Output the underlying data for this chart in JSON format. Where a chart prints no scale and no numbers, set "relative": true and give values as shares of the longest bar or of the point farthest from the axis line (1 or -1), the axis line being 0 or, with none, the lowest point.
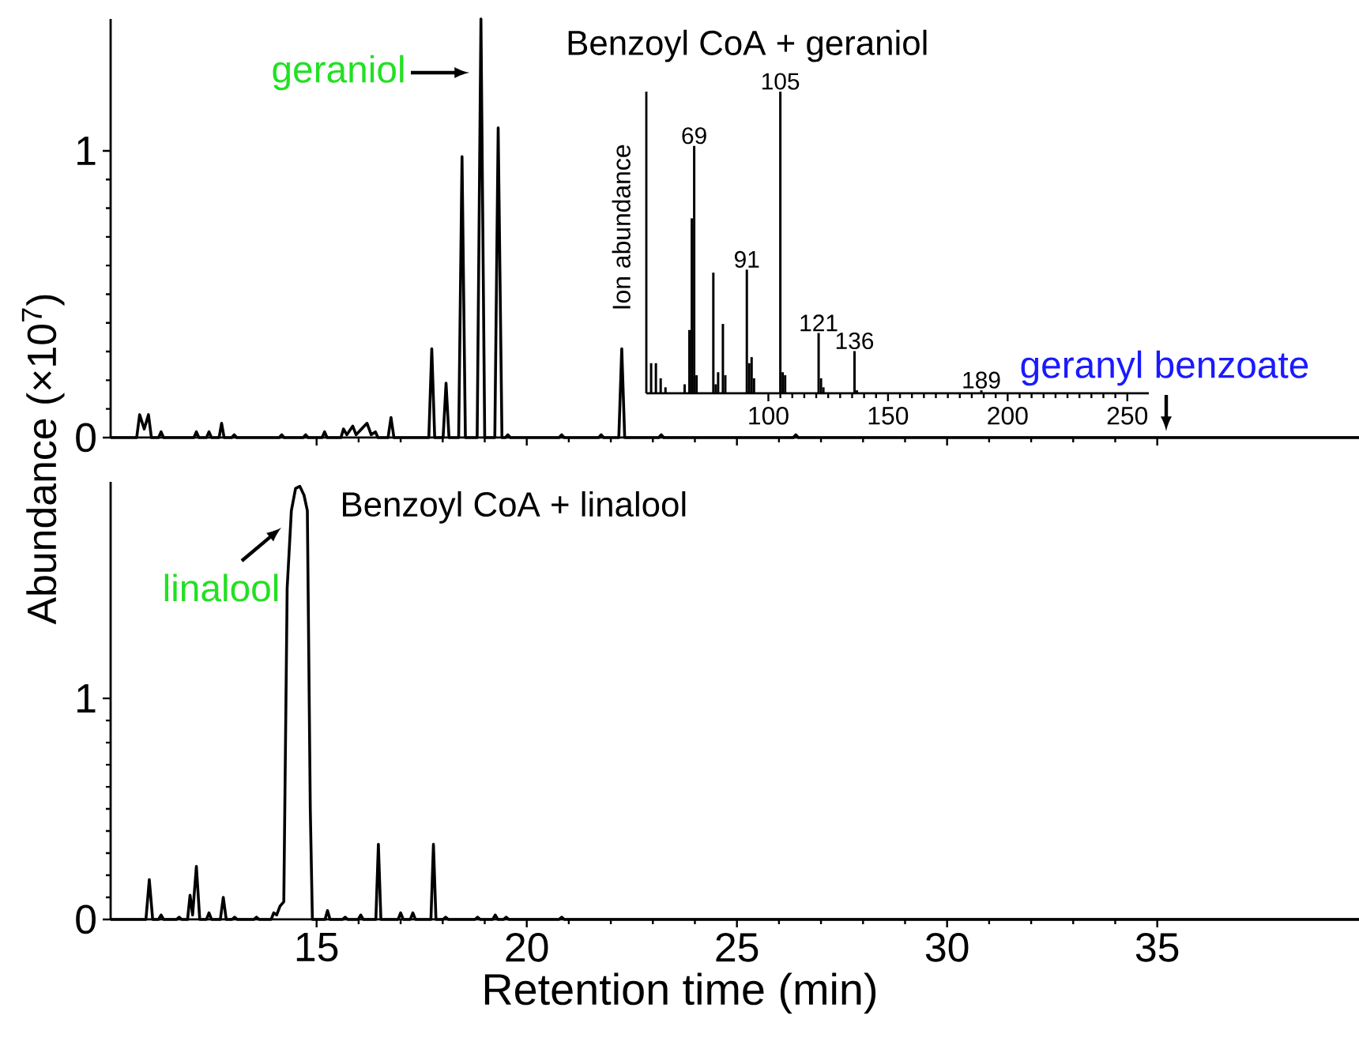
{
  "chart_data": [
    {
      "type": "line",
      "title": "Benzoyl CoA + geraniol",
      "ylabel": "Abundance (×10$^{7}$)",
      "xlim": [
        10.1,
        39.8
      ],
      "ylim": [
        0,
        1.46
      ],
      "xticks": [
        {
          "value": 15,
          "label": null
        },
        {
          "value": 20,
          "label": null
        },
        {
          "value": 25,
          "label": null
        },
        {
          "value": 30,
          "label": null
        },
        {
          "value": 35,
          "label": null
        }
      ],
      "yticks": [
        0,
        1
      ],
      "tick_labels": "y",
      "series": [
        {
          "color": "#000000",
          "x": [
            10.1,
            10.72,
            10.79,
            10.9,
            11.0,
            11.07,
            11.24,
            11.3,
            11.36,
            12.08,
            12.14,
            12.2,
            12.38,
            12.44,
            12.5,
            12.68,
            12.74,
            12.8,
            12.98,
            13.04,
            13.1,
            14.11,
            14.17,
            14.23,
            14.68,
            14.74,
            14.8,
            15.13,
            15.19,
            15.25,
            15.58,
            15.64,
            15.72,
            15.86,
            15.94,
            16.2,
            16.3,
            16.4,
            16.46,
            16.7,
            16.77,
            16.84,
            17.67,
            17.74,
            17.81,
            18.01,
            18.08,
            18.15,
            18.38,
            18.46,
            18.54,
            18.82,
            18.91,
            19.0,
            19.24,
            19.32,
            19.41,
            19.49,
            19.55,
            19.61,
            20.77,
            20.83,
            20.89,
            21.71,
            21.77,
            21.83,
            22.19,
            22.26,
            22.33,
            23.14,
            23.2,
            23.26,
            26.34,
            26.4,
            26.46,
            39.8
          ],
          "values": [
            0,
            0,
            0.08,
            0.03,
            0.08,
            0,
            0,
            0.02,
            0,
            0,
            0.02,
            0,
            0,
            0.02,
            0,
            0,
            0.05,
            0,
            0,
            0.01,
            0,
            0,
            0.01,
            0,
            0,
            0.01,
            0,
            0,
            0.02,
            0,
            0,
            0.03,
            0.01,
            0.04,
            0.01,
            0.05,
            0.01,
            0.02,
            0,
            0,
            0.07,
            0,
            0,
            0.31,
            0,
            0,
            0.19,
            0,
            0,
            0.98,
            0,
            0,
            1.46,
            0,
            0,
            1.08,
            0,
            0,
            0.01,
            0,
            0,
            0.01,
            0,
            0,
            0.01,
            0,
            0,
            0.31,
            0,
            0,
            0.01,
            0,
            0,
            0.01,
            0,
            0
          ]
        }
      ],
      "annotations": [
        "geraniol",
        "geranyl benzoate"
      ]
    },
    {
      "type": "bar",
      "relative": true,
      "ylabel": "Ion abundance",
      "xlim": [
        49,
        259
      ],
      "xticks": [
        100,
        150,
        200,
        250
      ],
      "tick_labels": "x",
      "series": [
        {
          "color": "#000000",
          "x": [
            51,
            53,
            55,
            57,
            65,
            67,
            68,
            69,
            70,
            77,
            78,
            79,
            81,
            82,
            91,
            92,
            93,
            94,
            105,
            106,
            107,
            121,
            122,
            123,
            136,
            137,
            189
          ],
          "values": [
            0.1,
            0.1,
            0.05,
            0.02,
            0.03,
            0.21,
            0.58,
            0.82,
            0.06,
            0.4,
            0.03,
            0.07,
            0.23,
            0.06,
            0.41,
            0.1,
            0.12,
            0.05,
            1.0,
            0.07,
            0.06,
            0.2,
            0.05,
            0.02,
            0.14,
            0.01,
            0.01
          ]
        }
      ],
      "annotations": [
        {
          "text": "69",
          "x": 69,
          "y": 0.82
        },
        {
          "text": "91",
          "x": 91,
          "y": 0.41
        },
        {
          "text": "105",
          "x": 105,
          "y": 1.0
        },
        {
          "text": "121",
          "x": 121,
          "y": 0.2
        },
        {
          "text": "136",
          "x": 136,
          "y": 0.14
        },
        {
          "text": "189",
          "x": 189,
          "y": 0.01
        }
      ]
    },
    {
      "type": "line",
      "title": "Benzoyl CoA + linalool",
      "xlabel": "Retention time (min)",
      "xlim": [
        10.1,
        39.8
      ],
      "ylim": [
        0,
        1.98
      ],
      "xticks": [
        15,
        20,
        25,
        30,
        35
      ],
      "yticks": [
        0,
        1
      ],
      "series": [
        {
          "color": "#000000",
          "x": [
            10.1,
            10.94,
            11.02,
            11.1,
            11.24,
            11.3,
            11.36,
            11.67,
            11.73,
            11.79,
            11.93,
            11.99,
            12.05,
            12.14,
            12.22,
            12.38,
            12.44,
            12.5,
            12.71,
            12.78,
            12.85,
            12.99,
            13.05,
            13.11,
            13.51,
            13.57,
            13.63,
            13.92,
            13.98,
            14.05,
            14.13,
            14.22,
            14.3,
            14.4,
            14.5,
            14.6,
            14.7,
            14.78,
            14.85,
            14.9,
            15.2,
            15.26,
            15.32,
            15.62,
            15.68,
            15.74,
            15.99,
            16.05,
            16.11,
            16.41,
            16.47,
            16.53,
            16.94,
            17.0,
            17.06,
            17.23,
            17.29,
            17.35,
            17.72,
            17.78,
            17.84,
            18.01,
            18.07,
            18.13,
            18.77,
            18.83,
            18.89,
            19.19,
            19.25,
            19.31,
            19.45,
            19.51,
            19.57,
            20.77,
            20.83,
            20.89,
            39.8
          ],
          "values": [
            0,
            0,
            0.18,
            0,
            0,
            0.02,
            0,
            0,
            0.01,
            0,
            0,
            0.11,
            0.02,
            0.24,
            0,
            0,
            0.03,
            0,
            0,
            0.1,
            0,
            0,
            0.01,
            0,
            0,
            0.01,
            0,
            0,
            0.03,
            0.02,
            0.06,
            0.08,
            1.5,
            1.85,
            1.95,
            1.96,
            1.92,
            1.85,
            0.5,
            0,
            0,
            0.04,
            0,
            0,
            0.01,
            0,
            0,
            0.02,
            0,
            0,
            0.34,
            0,
            0,
            0.03,
            0,
            0,
            0.03,
            0,
            0,
            0.34,
            0,
            0,
            0.01,
            0,
            0,
            0.01,
            0,
            0,
            0.02,
            0,
            0,
            0.01,
            0,
            0,
            0.01,
            0,
            0
          ]
        }
      ],
      "annotations": [
        "linalool"
      ]
    }
  ]
}
